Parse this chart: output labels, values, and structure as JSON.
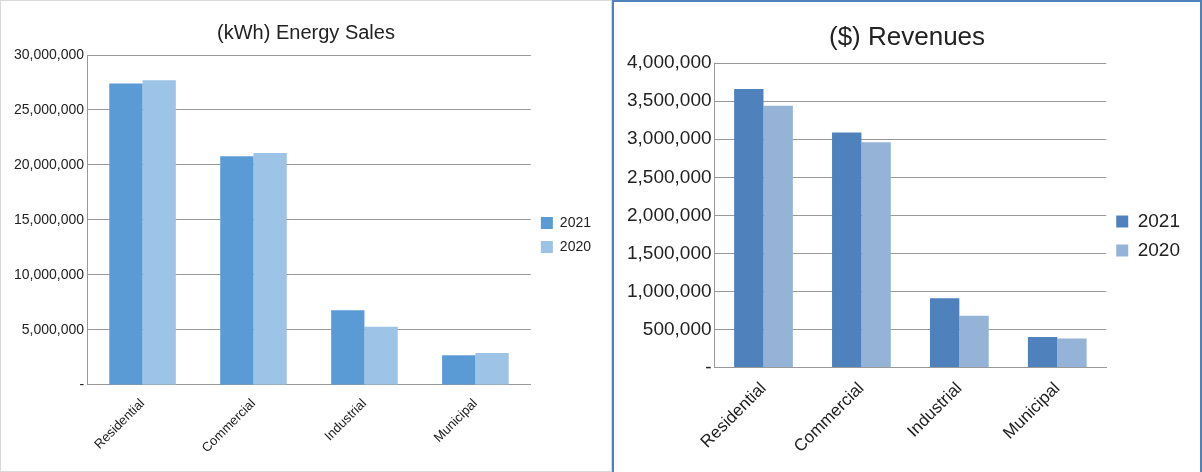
{
  "chart_data": [
    {
      "type": "bar",
      "title": "(kWh) Energy Sales",
      "categories": [
        "Residential",
        "Commercial",
        "Industrial",
        "Municipal"
      ],
      "series": [
        {
          "name": "2021",
          "color": "#5b9bd5",
          "values": [
            27400000,
            20800000,
            6800000,
            2700000
          ]
        },
        {
          "name": "2020",
          "color": "#9dc3e6",
          "values": [
            27700000,
            21100000,
            5300000,
            2900000
          ]
        }
      ],
      "ylim": [
        0,
        30000000
      ],
      "yticks": [
        {
          "value": 0,
          "label": "-"
        },
        {
          "value": 5000000,
          "label": "5,000,000"
        },
        {
          "value": 10000000,
          "label": "10,000,000"
        },
        {
          "value": 15000000,
          "label": "15,000,000"
        },
        {
          "value": 20000000,
          "label": "20,000,000"
        },
        {
          "value": 25000000,
          "label": "25,000,000"
        },
        {
          "value": 30000000,
          "label": "30,000,000"
        }
      ],
      "grid": "y",
      "legend": "right"
    },
    {
      "type": "bar",
      "title": "($) Revenues",
      "categories": [
        "Residential",
        "Commercial",
        "Industrial",
        "Municipal"
      ],
      "series": [
        {
          "name": "2021",
          "color": "#4f81bd",
          "values": [
            3660000,
            3090000,
            910000,
            400000
          ]
        },
        {
          "name": "2020",
          "color": "#95b3d7",
          "values": [
            3440000,
            2960000,
            680000,
            380000
          ]
        }
      ],
      "ylim": [
        0,
        4000000
      ],
      "yticks": [
        {
          "value": 0,
          "label": "-"
        },
        {
          "value": 500000,
          "label": "500,000"
        },
        {
          "value": 1000000,
          "label": "1,000,000"
        },
        {
          "value": 1500000,
          "label": "1,500,000"
        },
        {
          "value": 2000000,
          "label": "2,000,000"
        },
        {
          "value": 2500000,
          "label": "2,500,000"
        },
        {
          "value": 3000000,
          "label": "3,000,000"
        },
        {
          "value": 3500000,
          "label": "3,500,000"
        },
        {
          "value": 4000000,
          "label": "4,000,000"
        }
      ],
      "grid": "y",
      "legend": "right"
    }
  ]
}
